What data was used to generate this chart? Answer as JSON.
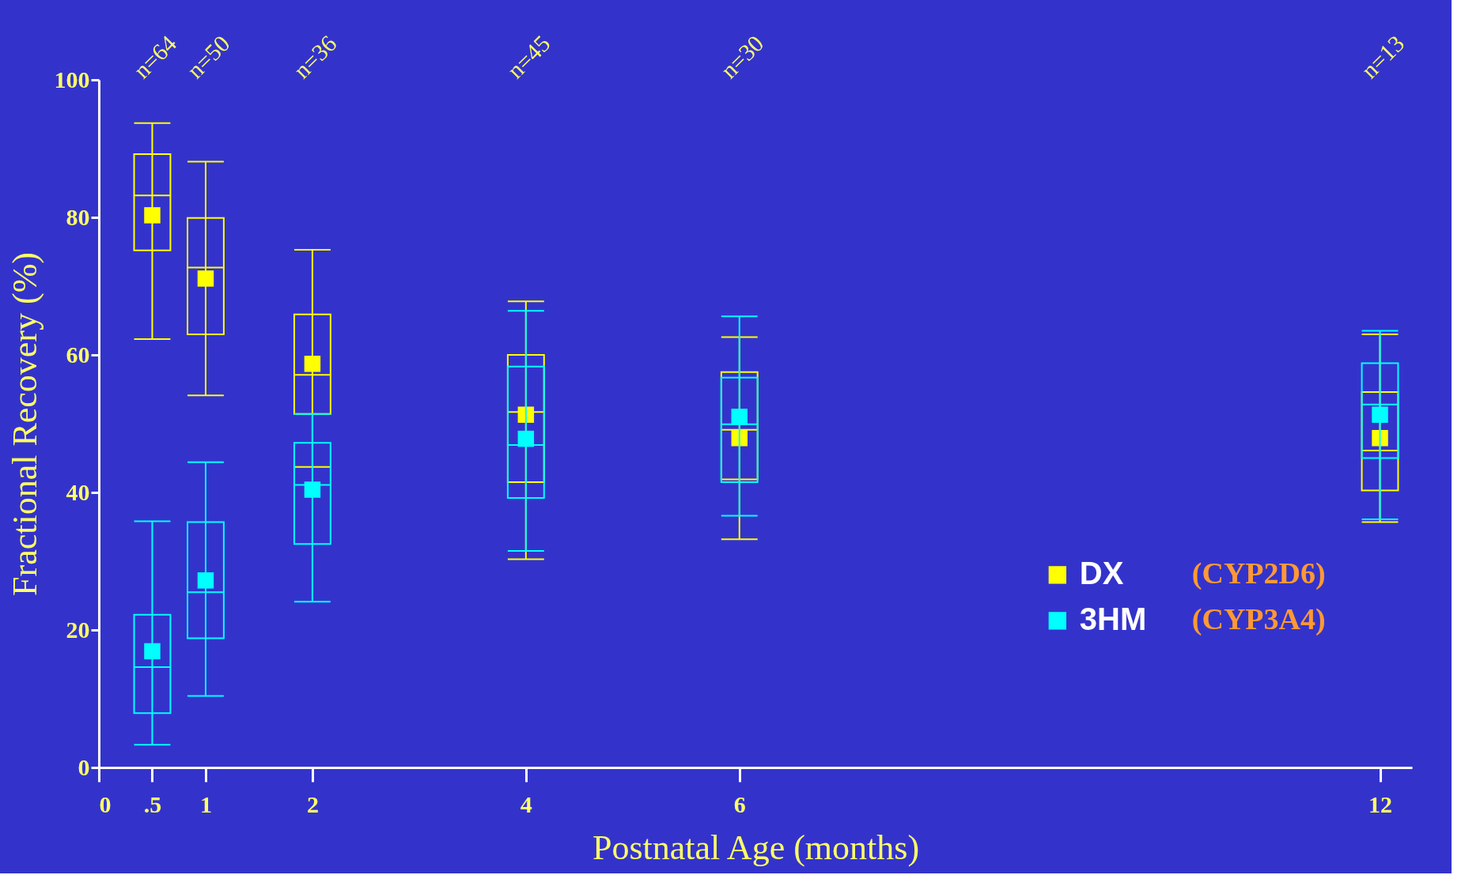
{
  "chart_data": {
    "type": "box",
    "xlabel": "Postnatal Age (months)",
    "ylabel": "Fractional Recovery (%)",
    "x": [
      0.5,
      1,
      2,
      4,
      6,
      12
    ],
    "xlim": [
      0,
      12.3
    ],
    "xticks": [
      0,
      {
        "value": 0.5,
        "label": ".5"
      },
      1,
      2,
      4,
      6,
      12
    ],
    "ylim": [
      0,
      100
    ],
    "yticks": [
      0,
      20,
      40,
      60,
      80,
      100
    ],
    "grid": false,
    "legend": "bottom right",
    "marker": "square",
    "series": [
      {
        "name": "DX",
        "color": "#ffff00",
        "boxes": [
          {
            "low": 62.3,
            "q1": 75.2,
            "median": 83.2,
            "q3": 89.2,
            "high": 93.7,
            "mean": 80.3
          },
          {
            "low": 54.1,
            "q1": 63.0,
            "median": 72.7,
            "q3": 79.9,
            "high": 88.1,
            "mean": 71.1
          },
          {
            "low": 43.7,
            "q1": 51.4,
            "median": 57.1,
            "q3": 65.9,
            "high": 75.3,
            "mean": 58.7
          },
          {
            "low": 30.3,
            "q1": 41.5,
            "median": 51.7,
            "q3": 60.0,
            "high": 67.8,
            "mean": 51.3
          },
          {
            "low": 33.2,
            "q1": 41.9,
            "median": 49.1,
            "q3": 57.5,
            "high": 62.6,
            "mean": 47.9
          },
          {
            "low": 35.7,
            "q1": 40.3,
            "median": 46.1,
            "q3": 54.6,
            "high": 63.0,
            "mean": 47.9
          }
        ]
      },
      {
        "name": "3HM",
        "color": "#00ffff",
        "boxes": [
          {
            "low": 3.3,
            "q1": 7.9,
            "median": 14.6,
            "q3": 22.2,
            "high": 35.8,
            "mean": 16.9
          },
          {
            "low": 10.4,
            "q1": 18.8,
            "median": 25.5,
            "q3": 35.7,
            "high": 44.4,
            "mean": 27.2
          },
          {
            "low": 24.1,
            "q1": 32.5,
            "median": 41.1,
            "q3": 47.2,
            "high": 51.4,
            "mean": 40.4
          },
          {
            "low": 31.5,
            "q1": 39.2,
            "median": 46.9,
            "q3": 58.3,
            "high": 66.4,
            "mean": 47.8
          },
          {
            "low": 36.6,
            "q1": 41.5,
            "median": 49.9,
            "q3": 56.7,
            "high": 65.6,
            "mean": 51.0
          },
          {
            "low": 36.1,
            "q1": 45.0,
            "median": 52.8,
            "q3": 58.8,
            "high": 63.5,
            "mean": 51.3
          }
        ]
      }
    ],
    "annotations": [
      "n=64",
      "n=50",
      "n=36",
      "n=45",
      "n=30",
      "n=13",
      "(CYP2D6)",
      "(CYP3A4)"
    ]
  }
}
